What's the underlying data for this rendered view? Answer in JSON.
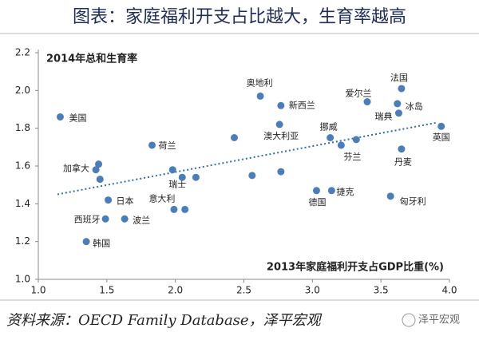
{
  "chart_data": {
    "type": "scatter",
    "title": "图表：家庭福利开支占比越大，生育率越高",
    "y_label": "2014年总和生育率",
    "x_label": "2013年家庭福利开支占GDP比重(%)",
    "source": "资料来源：OECD Family Database，泽平宏观",
    "watermark": "泽平宏观",
    "x": [
      1.16,
      2.62,
      2.77,
      3.65,
      3.4,
      3.62,
      3.63,
      3.94,
      2.76,
      3.13,
      3.32,
      3.21,
      3.65,
      2.43,
      1.83,
      1.44,
      1.42,
      1.45,
      1.98,
      2.05,
      2.15,
      2.56,
      2.77,
      1.51,
      1.99,
      2.07,
      1.49,
      1.63,
      1.35,
      3.03,
      3.14,
      3.57
    ],
    "series": [
      {
        "color": "#4a7ebb",
        "values": [
          1.86,
          1.97,
          1.92,
          2.01,
          1.94,
          1.93,
          1.88,
          1.81,
          1.82,
          1.75,
          1.74,
          1.71,
          1.69,
          1.75,
          1.71,
          1.61,
          1.58,
          1.53,
          1.58,
          1.54,
          1.54,
          1.55,
          1.57,
          1.42,
          1.37,
          1.37,
          1.32,
          1.32,
          1.2,
          1.47,
          1.47,
          1.44
        ],
        "point_labels": [
          "美国",
          "奥地利",
          "新西兰",
          "法国",
          "爱尔兰",
          "冰岛",
          "瑞典",
          "英国",
          "澳大利亚",
          "挪威",
          null,
          "芬兰",
          "丹麦",
          null,
          "荷兰",
          "加拿大",
          null,
          null,
          "瑞士",
          null,
          null,
          null,
          null,
          "日本",
          "意大利",
          null,
          "西班牙",
          "波兰",
          "韩国",
          "德国",
          "捷克",
          "匈牙利"
        ]
      }
    ],
    "trendline": {
      "color": "#2e6db4",
      "x": [
        1.14,
        3.91
      ],
      "values": [
        1.45,
        1.83
      ]
    },
    "xlim": [
      1.0,
      4.0
    ],
    "xticks": [
      {
        "value": 1.0,
        "label": "1.0"
      },
      1.5,
      {
        "value": 2.0,
        "label": "2.0"
      },
      2.5,
      {
        "value": 3.0,
        "label": "3.0"
      },
      3.5,
      {
        "value": 4.0,
        "label": "4.0"
      }
    ],
    "ylim": [
      1.0,
      2.2
    ],
    "yticks": [
      {
        "value": 1.0,
        "label": "1.0"
      },
      1.2,
      1.4,
      1.6,
      1.8,
      {
        "value": 2.0,
        "label": "2.0"
      },
      2.2
    ]
  }
}
